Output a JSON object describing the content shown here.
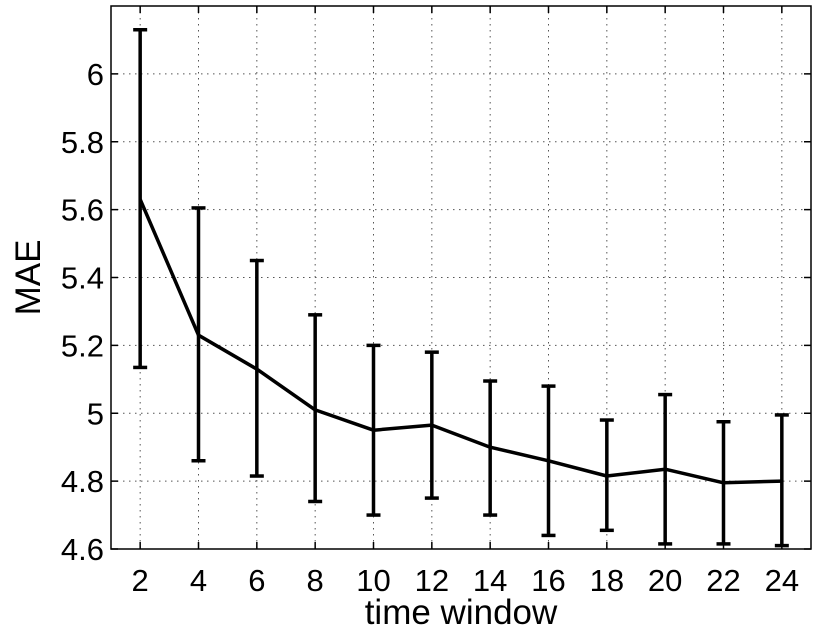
{
  "chart_data": {
    "type": "line",
    "title": "",
    "xlabel": "time window",
    "ylabel": "MAE",
    "xlim": [
      1,
      25
    ],
    "ylim": [
      4.6,
      6.2
    ],
    "xticks": [
      2,
      4,
      6,
      8,
      10,
      12,
      14,
      16,
      18,
      20,
      22,
      24
    ],
    "xtick_labels": [
      "2",
      "4",
      "6",
      "8",
      "10",
      "12",
      "14",
      "16",
      "18",
      "20",
      "22",
      "24"
    ],
    "yticks": [
      4.6,
      4.8,
      5.0,
      5.2,
      5.4,
      5.6,
      5.8,
      6.0
    ],
    "ytick_labels": [
      "4.6",
      "4.8",
      "5",
      "5.2",
      "5.4",
      "5.6",
      "5.8",
      "6"
    ],
    "grid": true,
    "series": [
      {
        "x": [
          2,
          4,
          6,
          8,
          10,
          12,
          14,
          16,
          18,
          20,
          22,
          24
        ],
        "y": [
          5.63,
          5.23,
          5.13,
          5.01,
          4.95,
          4.965,
          4.9,
          4.86,
          4.815,
          4.835,
          4.795,
          4.8
        ],
        "err_low": [
          5.135,
          4.86,
          4.815,
          4.74,
          4.7,
          4.75,
          4.7,
          4.64,
          4.655,
          4.615,
          4.615,
          4.61
        ],
        "err_high": [
          6.13,
          5.605,
          5.45,
          5.29,
          5.2,
          5.18,
          5.095,
          5.08,
          4.98,
          5.055,
          4.975,
          4.995
        ],
        "color": "#000000"
      }
    ]
  }
}
